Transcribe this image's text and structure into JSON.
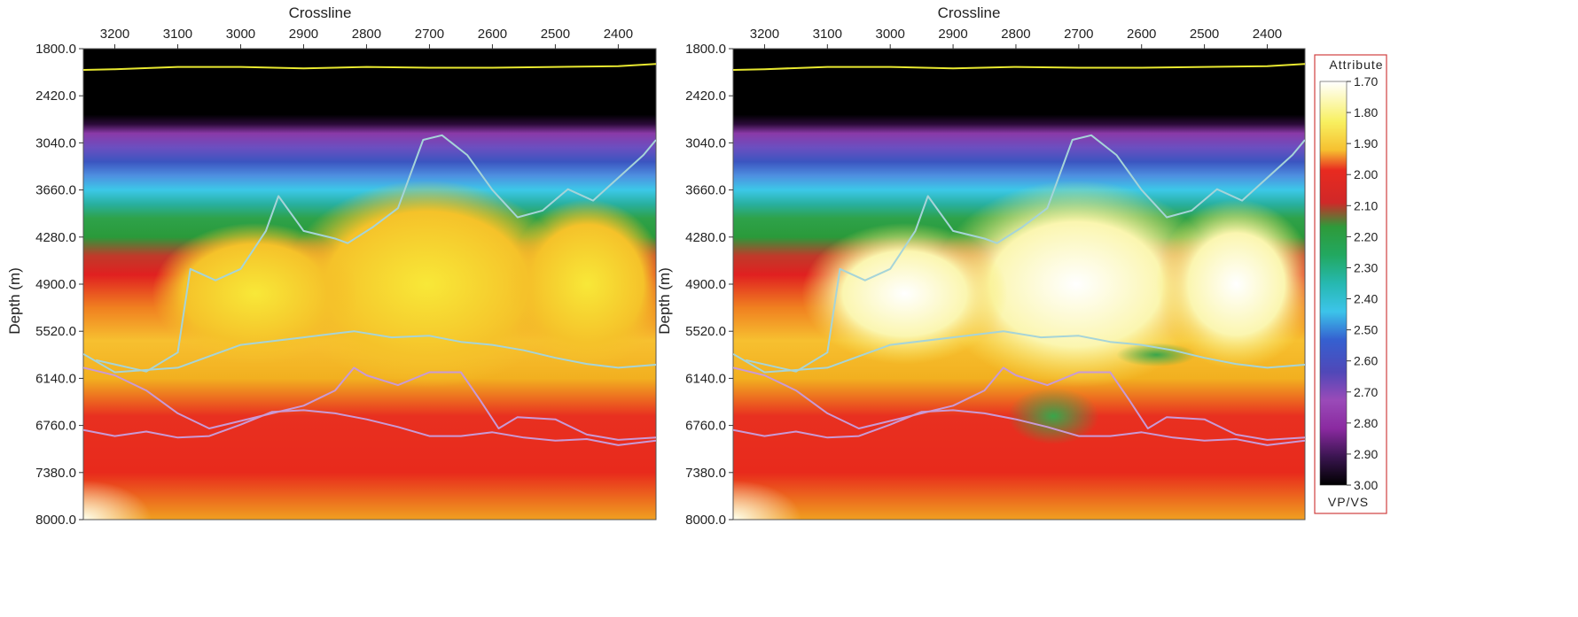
{
  "chart_data": [
    {
      "type": "heatmap",
      "xlabel": "Crossline",
      "ylabel": "Depth (m)",
      "xlim": [
        3250,
        2340
      ],
      "ylim": [
        1800.0,
        8000.0
      ],
      "x_ticks": [
        "3200",
        "3100",
        "3000",
        "2900",
        "2800",
        "2700",
        "2600",
        "2500",
        "2400"
      ],
      "y_ticks": [
        "1800.0",
        "2420.0",
        "3040.0",
        "3660.0",
        "4280.0",
        "4900.0",
        "5520.0",
        "6140.0",
        "6760.0",
        "7380.0",
        "8000.0"
      ],
      "horizons": [
        {
          "color": "#e8e830",
          "x": [
            3250,
            3200,
            3100,
            3000,
            2900,
            2800,
            2700,
            2600,
            2500,
            2400,
            2340
          ],
          "y": [
            2080,
            2070,
            2040,
            2040,
            2060,
            2040,
            2050,
            2050,
            2040,
            2030,
            2000
          ]
        },
        {
          "color": "#a6d4d8",
          "x": [
            3230,
            3150,
            3100,
            3080,
            3040,
            3000,
            2960,
            2940,
            2900,
            2850,
            2830,
            2790,
            2750,
            2710,
            2680,
            2640,
            2600,
            2560,
            2520,
            2480,
            2440,
            2400,
            2360,
            2340
          ],
          "y": [
            5900,
            6050,
            5800,
            4700,
            4850,
            4700,
            4200,
            3740,
            4200,
            4300,
            4360,
            4150,
            3900,
            3000,
            2940,
            3200,
            3660,
            4020,
            3930,
            3650,
            3800,
            3500,
            3200,
            3000
          ]
        },
        {
          "color": "#a6d4d8",
          "x": [
            3250,
            3200,
            3100,
            3000,
            2900,
            2820,
            2760,
            2700,
            2650,
            2600,
            2550,
            2500,
            2450,
            2400,
            2340
          ],
          "y": [
            5820,
            6060,
            6000,
            5700,
            5600,
            5520,
            5600,
            5580,
            5660,
            5700,
            5770,
            5870,
            5950,
            6000,
            5960
          ]
        },
        {
          "color": "#c99ad6",
          "x": [
            3250,
            3200,
            3150,
            3100,
            3050,
            3000,
            2950,
            2900,
            2850,
            2820,
            2800,
            2750,
            2700,
            2650,
            2620,
            2590,
            2560,
            2500,
            2450,
            2400,
            2340
          ],
          "y": [
            6000,
            6100,
            6300,
            6600,
            6800,
            6700,
            6600,
            6500,
            6300,
            6000,
            6100,
            6230,
            6060,
            6060,
            6420,
            6800,
            6650,
            6680,
            6880,
            6950,
            6920
          ]
        },
        {
          "color": "#c99ad6",
          "x": [
            3250,
            3200,
            3150,
            3100,
            3050,
            3000,
            2950,
            2900,
            2850,
            2800,
            2750,
            2700,
            2650,
            2600,
            2550,
            2500,
            2450,
            2400,
            2340
          ],
          "y": [
            6820,
            6900,
            6840,
            6920,
            6900,
            6750,
            6580,
            6560,
            6600,
            6680,
            6780,
            6900,
            6900,
            6850,
            6920,
            6960,
            6940,
            7020,
            6960
          ]
        }
      ]
    },
    {
      "type": "heatmap",
      "xlabel": "Crossline",
      "ylabel": "Depth (m)",
      "xlim": [
        3250,
        2340
      ],
      "ylim": [
        1800.0,
        8000.0
      ],
      "x_ticks": [
        "3200",
        "3100",
        "3000",
        "2900",
        "2800",
        "2700",
        "2600",
        "2500",
        "2400"
      ],
      "y_ticks": [
        "1800.0",
        "2420.0",
        "3040.0",
        "3660.0",
        "4280.0",
        "4900.0",
        "5520.0",
        "6140.0",
        "6760.0",
        "7380.0",
        "8000.0"
      ]
    }
  ],
  "colorbar": {
    "title": "Attribute",
    "unit_label": "VP/VS",
    "labels": [
      "1.70",
      "1.80",
      "1.90",
      "2.00",
      "2.10",
      "2.20",
      "2.30",
      "2.40",
      "2.50",
      "2.60",
      "2.70",
      "2.80",
      "2.90",
      "3.00"
    ],
    "range": [
      1.7,
      3.0
    ]
  }
}
